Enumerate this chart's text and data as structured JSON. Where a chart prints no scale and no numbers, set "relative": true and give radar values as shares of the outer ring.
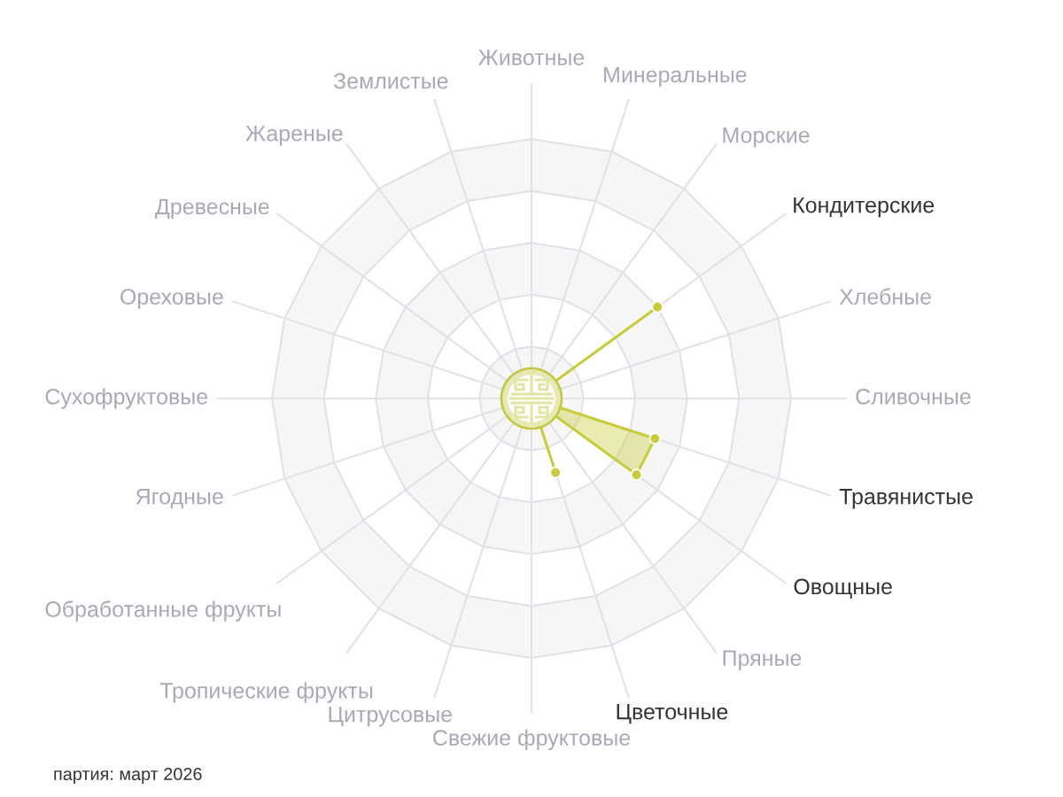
{
  "chart_data": {
    "type": "radar",
    "relative": true,
    "categories": [
      "Животные",
      "Минеральные",
      "Морские",
      "Кондитерские",
      "Хлебные",
      "Сливочные",
      "Травянистые",
      "Овощные",
      "Пряные",
      "Цветочные",
      "Свежие фруктовые",
      "Цитрусовые",
      "Тропические фрукты",
      "Обработанные фрукты",
      "Ягодные",
      "Сухофруктовые",
      "Ореховые",
      "Древесные",
      "Жареные",
      "Землистые"
    ],
    "series": [
      {
        "color": "#c8cc3c",
        "values": [
          0,
          0,
          0,
          0.6,
          0,
          0,
          0.5,
          0.5,
          0,
          0.3,
          0,
          0,
          0,
          0,
          0,
          0,
          0,
          0,
          0,
          0
        ]
      }
    ],
    "grid": true,
    "marker": "circle",
    "annotations": [
      "партия: март 2026"
    ]
  }
}
